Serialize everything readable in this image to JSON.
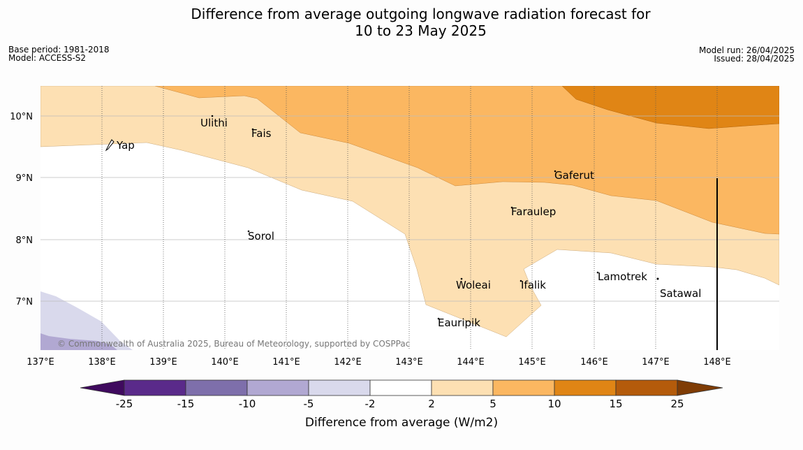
{
  "title": {
    "line1": "Difference from average outgoing longwave radiation forecast for",
    "line2": "10 to 23 May 2025"
  },
  "meta": {
    "base_period": "Base period: 1981-2018",
    "model": "Model: ACCESS-S2",
    "model_run": "Model run: 26/04/2025",
    "issued": "Issued: 28/04/2025"
  },
  "map": {
    "lon_labels": [
      "137°E",
      "138°E",
      "139°E",
      "140°E",
      "141°E",
      "142°E",
      "143°E",
      "144°E",
      "145°E",
      "146°E",
      "147°E",
      "148°E"
    ],
    "lat_labels": [
      "10°N",
      "9°N",
      "8°N",
      "7°N"
    ],
    "places": [
      "Ulithi",
      "Fais",
      "Yap",
      "Gaferut",
      "Faraulep",
      "Sorol",
      "Lamotrek",
      "Woleai",
      "Ifalik",
      "Satawal",
      "Eauripik"
    ],
    "copyright": "© Commonwealth of Australia 2025, Bureau of Meteorology, supported by COSPPac"
  },
  "colorbar": {
    "ticks": [
      "-25",
      "-15",
      "-10",
      "-5",
      "-2",
      "2",
      "5",
      "10",
      "15",
      "25"
    ],
    "title": "Difference from average (W/m2)",
    "colors": [
      "#3f0a5e",
      "#5a2a8a",
      "#7e6fab",
      "#b1a8d2",
      "#d9d9ec",
      "#ffffff",
      "#fde0b3",
      "#fbb761",
      "#e08515",
      "#b45b0b",
      "#7f3c05"
    ]
  }
}
